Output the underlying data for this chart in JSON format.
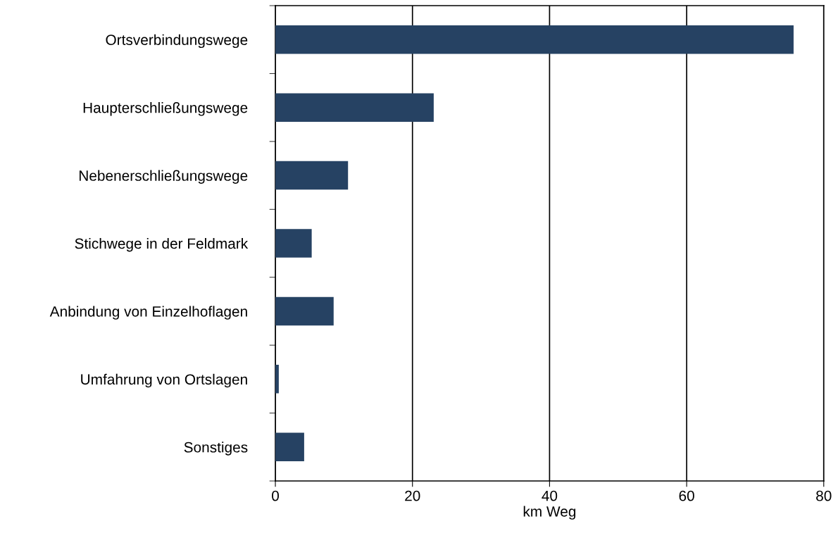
{
  "chart_data": {
    "type": "bar",
    "orientation": "horizontal",
    "xlabel": "km Weg",
    "categories": [
      "Ortsverbindungswege",
      "Haupterschließungswege",
      "Nebenerschließungswege",
      "Stichwege in der Feldmark",
      "Anbindung von Einzelhoflagen",
      "Umfahrung von Ortslagen",
      "Sonstiges"
    ],
    "values": [
      75.6,
      23.1,
      10.6,
      5.3,
      8.5,
      0.5,
      4.2
    ],
    "color": "#264263",
    "xlim": [
      0,
      80
    ],
    "xticks": [
      0,
      20,
      40,
      60,
      80
    ],
    "grid": "x",
    "legend": false
  }
}
